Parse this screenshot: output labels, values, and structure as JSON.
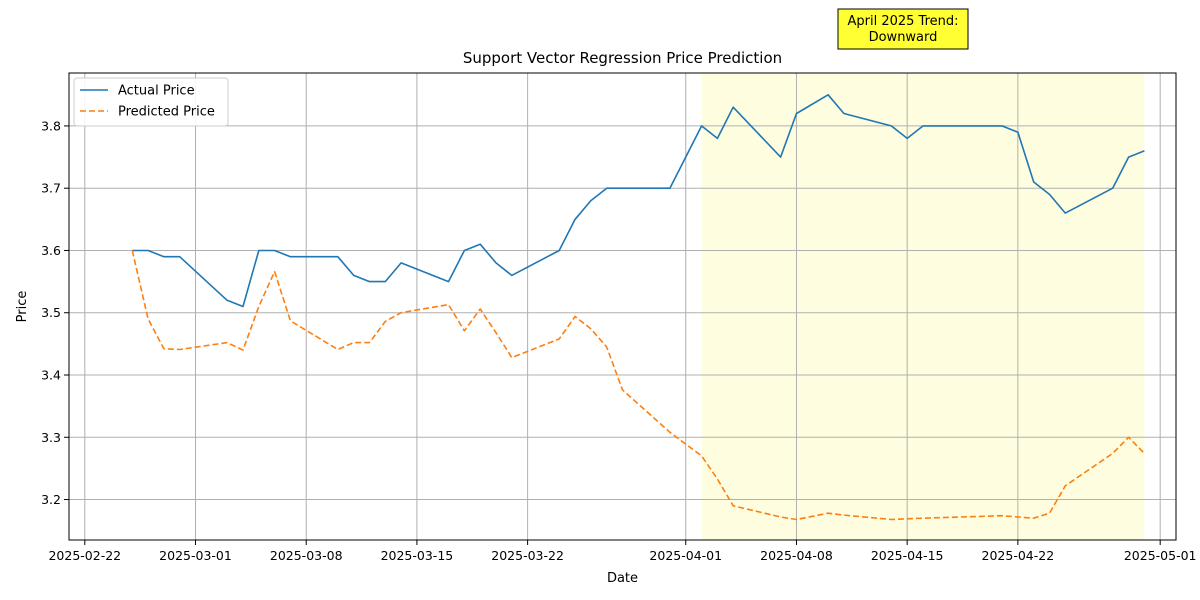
{
  "chart_data": {
    "type": "line",
    "title": "Support Vector Regression Price Prediction",
    "xlabel": "Date",
    "ylabel": "Price",
    "xlim": [
      "2025-02-21",
      "2025-05-02"
    ],
    "ylim": [
      3.135,
      3.885
    ],
    "x_ticks": [
      "2025-02-22",
      "2025-03-01",
      "2025-03-08",
      "2025-03-15",
      "2025-03-22",
      "2025-04-01",
      "2025-04-08",
      "2025-04-15",
      "2025-04-22",
      "2025-05-01"
    ],
    "y_ticks": [
      3.2,
      3.3,
      3.4,
      3.5,
      3.6,
      3.7,
      3.8
    ],
    "grid": true,
    "legend_position": "top-left",
    "highlight": {
      "start": "2025-04-02",
      "end": "2025-04-30",
      "color": "#fffde0"
    },
    "annotation": {
      "lines": [
        "April 2025 Trend:",
        "Downward"
      ],
      "background": "#ffff33"
    },
    "series": [
      {
        "name": "Actual Price",
        "color": "#1f77b4",
        "style": "solid",
        "x": [
          "2025-02-25",
          "2025-02-26",
          "2025-02-27",
          "2025-02-28",
          "2025-03-03",
          "2025-03-04",
          "2025-03-05",
          "2025-03-06",
          "2025-03-07",
          "2025-03-10",
          "2025-03-11",
          "2025-03-12",
          "2025-03-13",
          "2025-03-14",
          "2025-03-17",
          "2025-03-18",
          "2025-03-19",
          "2025-03-20",
          "2025-03-21",
          "2025-03-24",
          "2025-03-25",
          "2025-03-26",
          "2025-03-27",
          "2025-03-28",
          "2025-03-31",
          "2025-04-02",
          "2025-04-03",
          "2025-04-04",
          "2025-04-07",
          "2025-04-08",
          "2025-04-10",
          "2025-04-11",
          "2025-04-14",
          "2025-04-15",
          "2025-04-16",
          "2025-04-21",
          "2025-04-22",
          "2025-04-23",
          "2025-04-24",
          "2025-04-25",
          "2025-04-28",
          "2025-04-29",
          "2025-04-30"
        ],
        "values": [
          3.6,
          3.6,
          3.59,
          3.59,
          3.52,
          3.51,
          3.6,
          3.6,
          3.59,
          3.59,
          3.56,
          3.55,
          3.55,
          3.58,
          3.55,
          3.6,
          3.61,
          3.58,
          3.56,
          3.6,
          3.65,
          3.68,
          3.7,
          3.7,
          3.7,
          3.8,
          3.78,
          3.83,
          3.75,
          3.82,
          3.85,
          3.82,
          3.8,
          3.78,
          3.8,
          3.8,
          3.79,
          3.71,
          3.69,
          3.66,
          3.7,
          3.75,
          3.76
        ]
      },
      {
        "name": "Predicted Price",
        "color": "#ff7f0e",
        "style": "dashed",
        "x": [
          "2025-02-25",
          "2025-02-26",
          "2025-02-27",
          "2025-02-28",
          "2025-03-03",
          "2025-03-04",
          "2025-03-05",
          "2025-03-06",
          "2025-03-07",
          "2025-03-10",
          "2025-03-11",
          "2025-03-12",
          "2025-03-13",
          "2025-03-14",
          "2025-03-17",
          "2025-03-18",
          "2025-03-19",
          "2025-03-20",
          "2025-03-21",
          "2025-03-24",
          "2025-03-25",
          "2025-03-26",
          "2025-03-27",
          "2025-03-28",
          "2025-03-31",
          "2025-04-02",
          "2025-04-03",
          "2025-04-04",
          "2025-04-07",
          "2025-04-08",
          "2025-04-10",
          "2025-04-11",
          "2025-04-14",
          "2025-04-15",
          "2025-04-16",
          "2025-04-21",
          "2025-04-22",
          "2025-04-23",
          "2025-04-24",
          "2025-04-25",
          "2025-04-28",
          "2025-04-29",
          "2025-04-30"
        ],
        "values": [
          3.6,
          3.49,
          3.442,
          3.441,
          3.452,
          3.44,
          3.51,
          3.566,
          3.487,
          3.441,
          3.452,
          3.452,
          3.486,
          3.5,
          3.513,
          3.471,
          3.506,
          3.468,
          3.428,
          3.458,
          3.494,
          3.474,
          3.445,
          3.376,
          3.308,
          3.27,
          3.233,
          3.19,
          3.172,
          3.168,
          3.178,
          3.175,
          3.168,
          3.169,
          3.17,
          3.174,
          3.172,
          3.17,
          3.178,
          3.222,
          3.274,
          3.3,
          3.274
        ]
      }
    ]
  }
}
